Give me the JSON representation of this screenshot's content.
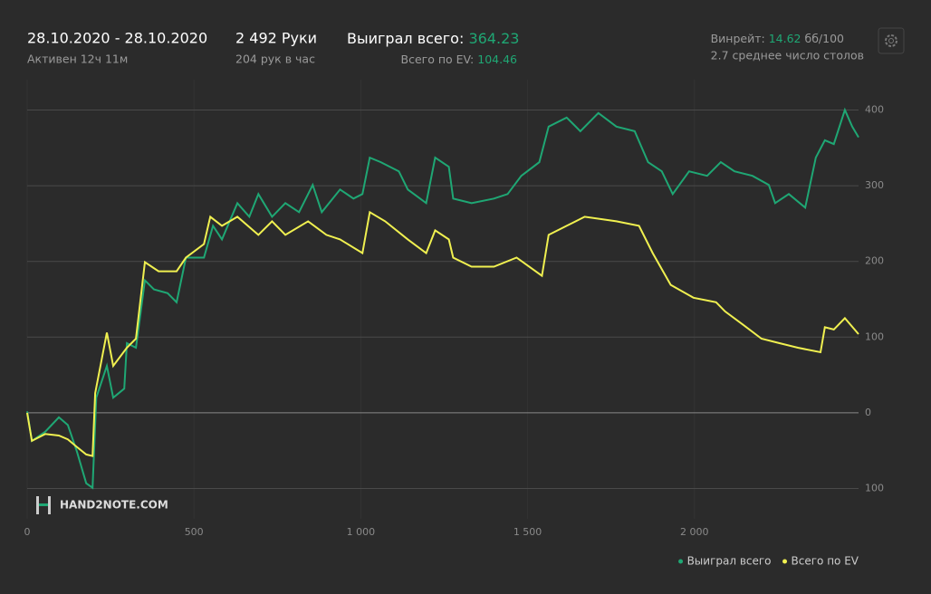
{
  "header": {
    "date_range": "28.10.2020 - 28.10.2020",
    "hands": "2 492 Руки",
    "won_label": "Выиграл всего:",
    "won_value": "364.23",
    "active": "Активен 12ч 11м",
    "per_hour": "204 рук в час",
    "ev_label": "Всего по EV:",
    "ev_value": "104.46",
    "winrate_label": "Винрейт:",
    "winrate_value": "14.62",
    "winrate_unit": "бб/100",
    "tables": "2.7 среднее число столов",
    "logo": "HAND2NOTE.COM"
  },
  "chart_data": {
    "type": "line",
    "grid": true,
    "legend": "bottom-right",
    "xlim": [
      0,
      2492
    ],
    "xticks": [
      0,
      500,
      {
        "value": 1000,
        "label": "1 000"
      },
      {
        "value": 1500,
        "label": "1 500"
      },
      {
        "value": 2000,
        "label": "2 000"
      }
    ],
    "ylim": [
      -140,
      440
    ],
    "yticks": [
      {
        "value": -100,
        "label": "100"
      },
      0,
      100,
      200,
      300,
      400
    ],
    "series": [
      {
        "name": "Выиграл всего",
        "color": "#1fa774",
        "x": [
          0,
          14,
          54,
          95,
          122,
          149,
          177,
          196,
          207,
          239,
          258,
          291,
          299,
          326,
          353,
          380,
          421,
          448,
          476,
          503,
          530,
          557,
          584,
          630,
          666,
          693,
          734,
          774,
          815,
          856,
          883,
          938,
          978,
          1005,
          1027,
          1060,
          1114,
          1141,
          1196,
          1223,
          1264,
          1277,
          1332,
          1399,
          1440,
          1481,
          1535,
          1563,
          1617,
          1658,
          1712,
          1766,
          1821,
          1861,
          1902,
          1935,
          1984,
          2038,
          2079,
          2120,
          2174,
          2223,
          2242,
          2283,
          2332,
          2364,
          2391,
          2418,
          2451,
          2473,
          2492
        ],
        "values": [
          2,
          -37,
          -25,
          -6,
          -16,
          -51,
          -93,
          -99,
          20,
          62,
          20,
          32,
          92,
          86,
          175,
          163,
          158,
          146,
          205,
          205,
          205,
          247,
          229,
          277,
          259,
          289,
          259,
          277,
          265,
          301,
          265,
          295,
          283,
          289,
          337,
          331,
          319,
          295,
          277,
          337,
          325,
          283,
          277,
          283,
          289,
          313,
          331,
          378,
          390,
          372,
          396,
          378,
          372,
          331,
          319,
          289,
          319,
          313,
          331,
          319,
          313,
          301,
          277,
          289,
          271,
          337,
          360,
          355,
          400,
          378,
          364
        ]
      },
      {
        "name": "Всего по EV",
        "color": "#f0f050",
        "x": [
          0,
          14,
          54,
          95,
          122,
          149,
          177,
          196,
          204,
          239,
          258,
          299,
          326,
          353,
          394,
          448,
          476,
          530,
          549,
          584,
          630,
          693,
          734,
          774,
          842,
          897,
          938,
          1005,
          1027,
          1073,
          1141,
          1196,
          1223,
          1264,
          1277,
          1332,
          1399,
          1467,
          1543,
          1563,
          1617,
          1671,
          1766,
          1834,
          1875,
          1929,
          1997,
          2065,
          2092,
          2147,
          2201,
          2255,
          2310,
          2378,
          2391,
          2418,
          2451,
          2492
        ],
        "values": [
          0,
          -37,
          -28,
          -30,
          -35,
          -45,
          -55,
          -57,
          26,
          106,
          62,
          86,
          98,
          199,
          187,
          187,
          205,
          223,
          259,
          247,
          259,
          235,
          253,
          235,
          253,
          235,
          229,
          211,
          265,
          253,
          229,
          211,
          241,
          229,
          205,
          193,
          193,
          205,
          181,
          235,
          247,
          259,
          253,
          247,
          211,
          169,
          152,
          146,
          134,
          116,
          98,
          92,
          86,
          80,
          113,
          110,
          125,
          104
        ]
      }
    ]
  }
}
